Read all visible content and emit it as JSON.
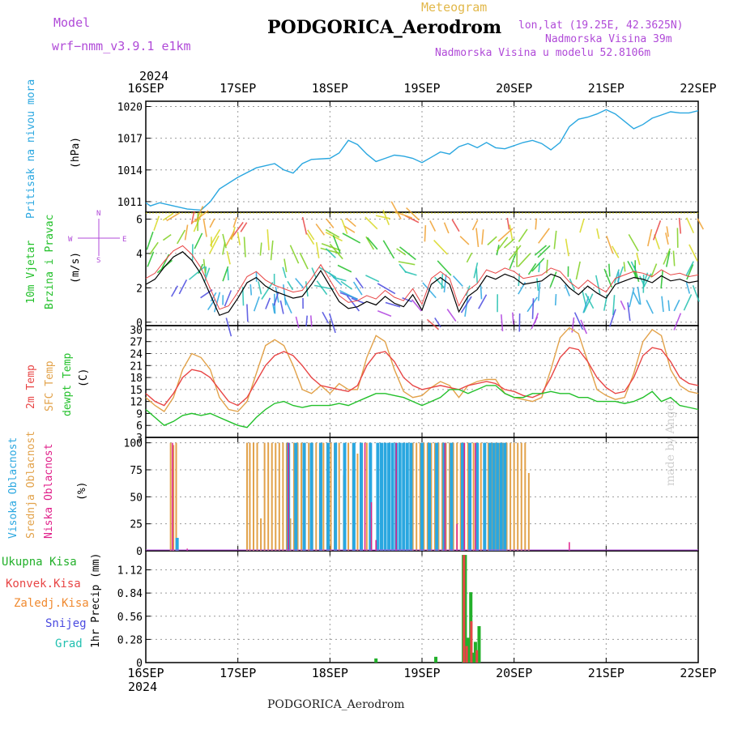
{
  "header": {
    "model_label": "Model",
    "model_name": "wrf−nmm_v3.9.1  e1km",
    "meteogram": "Meteogram",
    "station": "PODGORICA_Aerodrom",
    "lonlat": "lon,lat (19.25E, 42.3625N)",
    "elevation": "Nadmorska Visina 39m",
    "model_elevation": "Nadmorska Visina u modelu 52.8106m",
    "footer_station": "PODGORICA_Aerodrom",
    "watermark": "made by Angel"
  },
  "colors": {
    "pressure": "#2aa7e0",
    "temp2m": "#e84545",
    "sfc_temp": "#e2a24a",
    "dewpoint": "#22c02a",
    "cloud_high": "#2aa7e0",
    "cloud_mid": "#e2a24a",
    "cloud_low": "#e0208a",
    "precip_total": "#22b02a",
    "precip_conv": "#e84545",
    "precip_frozen": "#f08a30",
    "snow": "#4a4ae0",
    "hail": "#22c0b0",
    "wind_label": "#22c02a",
    "wind_black": "#000000",
    "wind_red": "#e84545"
  },
  "chart_data": [
    {
      "type": "line",
      "panel": "pressure",
      "ylabel_color": "Pritisak na nivou mora",
      "ylabel_unit": "(hPa)",
      "year_label": "2024",
      "x_tick_labels": [
        "16SEP",
        "17SEP",
        "18SEP",
        "19SEP",
        "20SEP",
        "21SEP",
        "22SEP"
      ],
      "y_ticks": [
        1011,
        1014,
        1017,
        1020
      ],
      "ylim": [
        1010.0,
        1020.5
      ],
      "grid": true,
      "series": [
        {
          "name": "Pritisak na nivou mora",
          "x": [
            0,
            0.05,
            0.15,
            0.3,
            0.45,
            0.6,
            0.7,
            0.8,
            1.0,
            1.2,
            1.4,
            1.5,
            1.6,
            1.7,
            1.8,
            2.0,
            2.1,
            2.2,
            2.3,
            2.4,
            2.5,
            2.6,
            2.7,
            2.8,
            2.9,
            3.0,
            3.1,
            3.2,
            3.3,
            3.4,
            3.5,
            3.6,
            3.7,
            3.8,
            3.9,
            4.0,
            4.1,
            4.2,
            4.3,
            4.4,
            4.5,
            4.6,
            4.7,
            4.8,
            4.9,
            5.0,
            5.1,
            5.2,
            5.3,
            5.4,
            5.5,
            5.6,
            5.7,
            5.8,
            5.9,
            6.0
          ],
          "y": [
            1010.9,
            1010.6,
            1010.9,
            1010.6,
            1010.3,
            1010.2,
            1011.0,
            1012.2,
            1013.3,
            1014.2,
            1014.6,
            1014.0,
            1013.7,
            1014.6,
            1015.0,
            1015.1,
            1015.6,
            1016.8,
            1016.4,
            1015.5,
            1014.8,
            1015.1,
            1015.4,
            1015.3,
            1015.1,
            1014.7,
            1015.2,
            1015.7,
            1015.5,
            1016.2,
            1016.5,
            1016.1,
            1016.6,
            1016.1,
            1016.0,
            1016.3,
            1016.6,
            1016.8,
            1016.5,
            1015.9,
            1016.6,
            1018.1,
            1018.8,
            1019.0,
            1019.3,
            1019.7,
            1019.3,
            1018.6,
            1017.9,
            1018.3,
            1018.9,
            1019.2,
            1019.5,
            1019.4,
            1019.4,
            1019.6
          ]
        }
      ]
    },
    {
      "type": "line",
      "panel": "wind",
      "ylabel_color_1": "10m Vjetar",
      "ylabel_color_2": "Brzina i Pravac",
      "ylabel_unit": "(m/s)",
      "compass_n": "N",
      "compass_s": "S",
      "compass_e": "E",
      "compass_w": "W",
      "y_ticks": [
        0,
        2,
        4,
        6
      ],
      "ylim": [
        -0.2,
        6.4
      ],
      "series": [
        {
          "name": "wind speed",
          "x": [
            0,
            0.1,
            0.2,
            0.3,
            0.4,
            0.5,
            0.6,
            0.7,
            0.8,
            0.9,
            1.0,
            1.1,
            1.2,
            1.3,
            1.4,
            1.5,
            1.6,
            1.7,
            1.8,
            1.9,
            2.0,
            2.1,
            2.2,
            2.3,
            2.4,
            2.5,
            2.6,
            2.7,
            2.8,
            2.9,
            3.0,
            3.1,
            3.2,
            3.3,
            3.4,
            3.5,
            3.6,
            3.7,
            3.8,
            3.9,
            4.0,
            4.1,
            4.2,
            4.3,
            4.4,
            4.5,
            4.6,
            4.7,
            4.8,
            4.9,
            5.0,
            5.1,
            5.2,
            5.3,
            5.4,
            5.5,
            5.6,
            5.7,
            5.8,
            5.9,
            6.0
          ],
          "y": [
            2.2,
            2.5,
            3.2,
            3.8,
            4.1,
            3.6,
            2.8,
            1.6,
            0.4,
            0.6,
            1.4,
            2.3,
            2.6,
            2.1,
            1.8,
            1.6,
            1.4,
            1.5,
            2.2,
            3.0,
            2.1,
            1.2,
            0.8,
            0.9,
            1.2,
            1.0,
            1.5,
            1.1,
            0.9,
            1.6,
            0.7,
            2.2,
            2.6,
            2.2,
            0.6,
            1.5,
            1.9,
            2.7,
            2.5,
            2.8,
            2.6,
            2.2,
            2.3,
            2.4,
            2.8,
            2.6,
            2.0,
            1.6,
            2.1,
            1.7,
            1.4,
            2.2,
            2.4,
            2.6,
            2.5,
            2.3,
            2.7,
            2.4,
            2.5,
            2.3,
            2.4
          ]
        }
      ]
    },
    {
      "type": "line",
      "panel": "temperature",
      "ylabel_t2m": "2m Temp",
      "ylabel_sfc": "SFC Temp",
      "ylabel_dew": "dewpt Temp",
      "ylabel_unit": "(C)",
      "y_ticks": [
        3,
        6,
        9,
        12,
        15,
        18,
        21,
        24,
        27,
        30
      ],
      "ylim": [
        3,
        31
      ],
      "grid": true,
      "series": [
        {
          "name": "2m Temp",
          "x": [
            0,
            0.1,
            0.2,
            0.3,
            0.4,
            0.5,
            0.6,
            0.7,
            0.8,
            0.9,
            1.0,
            1.1,
            1.2,
            1.3,
            1.4,
            1.5,
            1.6,
            1.7,
            1.8,
            1.9,
            2.0,
            2.1,
            2.2,
            2.3,
            2.4,
            2.5,
            2.6,
            2.7,
            2.8,
            2.9,
            3.0,
            3.1,
            3.2,
            3.3,
            3.4,
            3.5,
            3.6,
            3.7,
            3.8,
            3.9,
            4.0,
            4.1,
            4.2,
            4.3,
            4.4,
            4.5,
            4.6,
            4.7,
            4.8,
            4.9,
            5.0,
            5.1,
            5.2,
            5.3,
            5.4,
            5.5,
            5.6,
            5.7,
            5.8,
            5.9,
            6.0
          ],
          "y": [
            14,
            12,
            11,
            14,
            18,
            20,
            19.5,
            18,
            15,
            12,
            11,
            13,
            17,
            21,
            23.5,
            24.5,
            23.5,
            21,
            18,
            16,
            15.5,
            15,
            14.5,
            16,
            21,
            24,
            24.5,
            22,
            18,
            16,
            15,
            15.5,
            16,
            15.5,
            15,
            16,
            16.5,
            17,
            16.5,
            15,
            14.5,
            13.5,
            13,
            14,
            18,
            23,
            25.5,
            25,
            22,
            18,
            15.5,
            14,
            14.5,
            18,
            23.5,
            25.5,
            25,
            22,
            18,
            16.5,
            16
          ]
        },
        {
          "name": "SFC Temp",
          "x": [
            0,
            0.1,
            0.2,
            0.3,
            0.4,
            0.5,
            0.6,
            0.7,
            0.8,
            0.9,
            1.0,
            1.1,
            1.2,
            1.3,
            1.4,
            1.5,
            1.6,
            1.7,
            1.8,
            1.9,
            2.0,
            2.1,
            2.2,
            2.3,
            2.4,
            2.5,
            2.6,
            2.7,
            2.8,
            2.9,
            3.0,
            3.1,
            3.2,
            3.3,
            3.4,
            3.5,
            3.6,
            3.7,
            3.8,
            3.9,
            4.0,
            4.1,
            4.2,
            4.3,
            4.4,
            4.5,
            4.6,
            4.7,
            4.8,
            4.9,
            5.0,
            5.1,
            5.2,
            5.3,
            5.4,
            5.5,
            5.6,
            5.7,
            5.8,
            5.9,
            6.0
          ],
          "y": [
            13,
            11,
            9.5,
            13,
            20,
            24,
            23,
            20,
            13,
            10,
            9.5,
            12,
            19,
            26,
            27.5,
            26,
            21,
            15,
            14,
            16,
            14,
            16.5,
            15,
            15,
            23,
            28.5,
            27,
            20,
            14.5,
            13,
            13.5,
            15.5,
            17,
            16,
            13,
            16,
            17,
            17.5,
            17.5,
            14,
            13,
            12.5,
            12,
            13,
            20,
            28,
            30.5,
            29,
            22,
            15,
            13.5,
            12.5,
            13,
            19,
            27,
            30,
            28.5,
            20,
            16,
            14.5,
            14
          ]
        },
        {
          "name": "dewpt Temp",
          "x": [
            0,
            0.1,
            0.2,
            0.3,
            0.4,
            0.5,
            0.6,
            0.7,
            0.8,
            0.9,
            1.0,
            1.1,
            1.2,
            1.3,
            1.4,
            1.5,
            1.6,
            1.7,
            1.8,
            1.9,
            2.0,
            2.1,
            2.2,
            2.3,
            2.4,
            2.5,
            2.6,
            2.7,
            2.8,
            2.9,
            3.0,
            3.1,
            3.2,
            3.3,
            3.4,
            3.5,
            3.6,
            3.7,
            3.8,
            3.9,
            4.0,
            4.1,
            4.2,
            4.3,
            4.4,
            4.5,
            4.6,
            4.7,
            4.8,
            4.9,
            5.0,
            5.1,
            5.2,
            5.3,
            5.4,
            5.5,
            5.6,
            5.7,
            5.8,
            5.9,
            6.0
          ],
          "y": [
            10,
            8,
            6,
            7,
            8.5,
            9,
            8.5,
            9,
            8,
            7,
            6,
            5.5,
            8,
            10,
            11.5,
            12,
            11,
            10.5,
            11,
            11,
            11,
            11.5,
            11,
            12,
            13,
            14,
            14,
            13.5,
            13,
            12,
            11,
            12,
            13,
            15,
            15,
            14,
            15,
            16,
            16,
            14,
            13,
            13,
            14,
            14,
            14.5,
            14,
            14,
            13,
            13,
            12,
            12,
            12,
            11.5,
            12,
            13,
            14.5,
            12,
            13,
            11,
            10.5,
            10
          ]
        }
      ]
    },
    {
      "type": "bar",
      "panel": "clouds",
      "ylabel_high": "Visoka Oblacnost",
      "ylabel_mid": "Srednja Oblacnost",
      "ylabel_low": "Niska Oblacnost",
      "ylabel_unit": "(%)",
      "y_ticks": [
        0,
        25,
        50,
        75,
        100
      ],
      "ylim": [
        0,
        105
      ],
      "series": [
        {
          "name": "Srednja Oblacnost",
          "x": [
            0.27,
            0.3,
            0.33,
            1.1,
            1.13,
            1.17,
            1.21,
            1.25,
            1.29,
            1.33,
            1.37,
            1.41,
            1.45,
            1.49,
            1.53,
            1.57,
            1.61,
            1.65,
            1.69,
            1.73,
            1.77,
            1.81,
            1.85,
            1.89,
            1.93,
            1.97,
            2.01,
            2.05,
            2.1,
            2.15,
            2.2,
            2.25,
            2.3,
            2.35,
            2.4,
            2.45,
            2.9,
            2.94,
            2.98,
            3.02,
            3.06,
            3.1,
            3.14,
            3.18,
            3.22,
            3.26,
            3.3,
            3.34,
            3.38,
            3.42,
            3.46,
            3.5,
            3.56,
            3.6,
            3.64,
            3.68,
            3.72,
            3.76,
            3.8,
            3.84,
            3.88,
            3.92,
            3.96,
            4.0,
            4.04,
            4.08,
            4.12,
            4.16
          ],
          "y": [
            100,
            98,
            100,
            100,
            100,
            100,
            100,
            30,
            100,
            100,
            100,
            100,
            100,
            100,
            100,
            30,
            100,
            100,
            100,
            100,
            100,
            100,
            100,
            100,
            100,
            100,
            100,
            100,
            100,
            70,
            100,
            100,
            90,
            100,
            100,
            30,
            100,
            100,
            100,
            100,
            100,
            100,
            100,
            100,
            100,
            100,
            100,
            100,
            100,
            100,
            100,
            100,
            100,
            100,
            100,
            100,
            100,
            100,
            100,
            100,
            100,
            100,
            100,
            100,
            100,
            100,
            100,
            72
          ]
        },
        {
          "name": "Visoka Oblacnost",
          "x": [
            0.34,
            1.55,
            1.63,
            1.72,
            1.8,
            1.9,
            1.98,
            2.06,
            2.16,
            2.26,
            2.34,
            2.44,
            2.52,
            2.56,
            2.6,
            2.64,
            2.68,
            2.72,
            2.76,
            2.8,
            2.84,
            2.88,
            3.0,
            3.08,
            3.16,
            3.24,
            3.32,
            3.44,
            3.52,
            3.6,
            3.68,
            3.74,
            3.78,
            3.82,
            3.86,
            3.9
          ],
          "y": [
            12,
            100,
            100,
            100,
            100,
            100,
            100,
            100,
            100,
            100,
            100,
            100,
            100,
            100,
            100,
            100,
            100,
            100,
            100,
            100,
            100,
            100,
            100,
            100,
            100,
            100,
            100,
            100,
            100,
            100,
            100,
            100,
            100,
            100,
            100,
            100
          ]
        },
        {
          "name": "Niska Oblacnost",
          "x": [
            0.29,
            0.45,
            1.55,
            2.38,
            2.45,
            2.5,
            2.72,
            3.25,
            3.38,
            3.46,
            3.58,
            4.6
          ],
          "y": [
            100,
            2,
            100,
            100,
            45,
            10,
            100,
            100,
            25,
            100,
            100,
            8
          ]
        }
      ]
    },
    {
      "type": "bar",
      "panel": "precip",
      "legend": [
        "Ukupna Kisa",
        "Konvek.Kisa",
        "Zaledj.Kisa",
        "Snijeg",
        "Grad"
      ],
      "ylabel": "1hr Precip (mm)",
      "y_ticks": [
        0,
        0.28,
        0.56,
        0.84,
        1.12
      ],
      "ylim": [
        0,
        1.35
      ],
      "x_tick_labels": [
        "16SEP",
        "17SEP",
        "18SEP",
        "19SEP",
        "20SEP",
        "21SEP",
        "22SEP"
      ],
      "year_label": "2024",
      "series": [
        {
          "name": "Ukupna Kisa",
          "x": [
            2.5,
            3.15,
            3.45,
            3.47,
            3.5,
            3.53,
            3.55,
            3.58,
            3.62
          ],
          "y": [
            0.05,
            0.07,
            1.3,
            1.3,
            0.3,
            0.85,
            0.12,
            0.25,
            0.44
          ]
        },
        {
          "name": "Konvek.Kisa",
          "x": [
            3.46,
            3.49,
            3.54,
            3.6
          ],
          "y": [
            1.3,
            0.2,
            0.5,
            0.15
          ]
        }
      ]
    }
  ]
}
